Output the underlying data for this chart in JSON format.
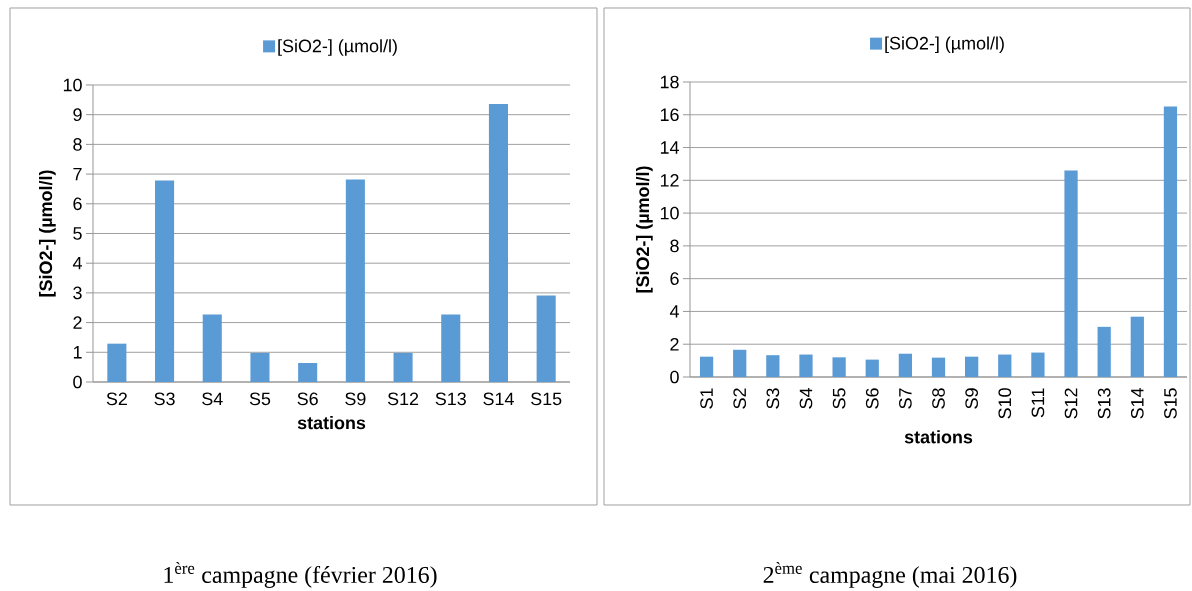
{
  "chart_data": [
    {
      "type": "bar",
      "xlabel": "stations",
      "ylabel": "[SiO2-] (µmol/l)",
      "legend": "top",
      "grid": "y",
      "categories": [
        "S2",
        "S3",
        "S4",
        "S5",
        "S6",
        "S9",
        "S12",
        "S13",
        "S14",
        "S15"
      ],
      "series": [
        {
          "name": "[SiO2-] (µmol/l)",
          "color": "#5b9bd5",
          "values": [
            1.29,
            6.78,
            2.27,
            0.98,
            0.64,
            6.82,
            0.98,
            2.27,
            9.36,
            2.91
          ]
        }
      ],
      "ylim": [
        0,
        10
      ],
      "yticks": [
        0,
        1,
        2,
        3,
        4,
        5,
        6,
        7,
        8,
        9,
        10
      ],
      "annotations": [
        "1$^{ère}$ campagne (février 2016)"
      ]
    },
    {
      "type": "bar",
      "xlabel": "stations",
      "ylabel": "[SiO2-] (µmol/l)",
      "legend": "top",
      "grid": "y",
      "categories": [
        "S1",
        "S2",
        "S3",
        "S4",
        "S5",
        "S6",
        "S7",
        "S8",
        "S9",
        "S10",
        "S11",
        "S12",
        "S13",
        "S14",
        "S15"
      ],
      "series": [
        {
          "name": "[SiO2-] (µmol/l)",
          "color": "#5b9bd5",
          "values": [
            1.24,
            1.66,
            1.33,
            1.37,
            1.2,
            1.06,
            1.42,
            1.18,
            1.24,
            1.37,
            1.49,
            12.6,
            3.06,
            3.68,
            16.5
          ]
        }
      ],
      "ylim": [
        0,
        18
      ],
      "yticks": [
        0,
        2,
        4,
        6,
        8,
        10,
        12,
        14,
        16,
        18
      ],
      "annotations": [
        "2$^{ème}$ campagne (mai 2016)"
      ]
    }
  ]
}
